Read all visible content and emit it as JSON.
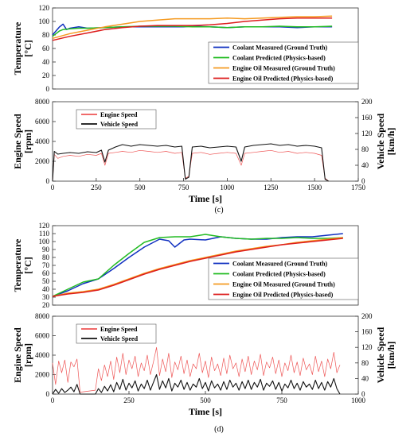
{
  "figure": {
    "panel_c_label": "(c)",
    "panel_d_label": "(d)"
  },
  "chart_data": [
    {
      "id": "c_temp",
      "type": "line",
      "ylabel": "Temperature\n[°C]",
      "ylim": [
        0,
        120
      ],
      "yticks": [
        0,
        20,
        40,
        60,
        80,
        100,
        120
      ],
      "xlim": [
        0,
        1750
      ],
      "show_xticklabels": false,
      "legend_position": "lower-right",
      "series": [
        {
          "name": "Coolant Measured (Ground Truth)",
          "color": "#1030c0",
          "x": [
            0,
            20,
            40,
            60,
            80,
            100,
            150,
            200,
            300,
            400,
            500,
            600,
            700,
            750,
            800,
            900,
            1000,
            1100,
            1200,
            1300,
            1400,
            1500,
            1600
          ],
          "y": [
            80,
            86,
            92,
            96,
            88,
            90,
            92,
            90,
            91,
            92,
            92,
            92,
            92,
            92,
            93,
            92,
            91,
            92,
            92,
            92,
            91,
            92,
            92
          ]
        },
        {
          "name": "Coolant Predicted (Physics-based)",
          "color": "#22bb22",
          "x": [
            0,
            20,
            40,
            60,
            100,
            150,
            200,
            300,
            400,
            500,
            600,
            700,
            800,
            900,
            1000,
            1100,
            1200,
            1300,
            1400,
            1500,
            1600
          ],
          "y": [
            78,
            82,
            86,
            88,
            89,
            90,
            90,
            91,
            92,
            93,
            93,
            93,
            92,
            92,
            91,
            92,
            92,
            93,
            92,
            92,
            93
          ]
        },
        {
          "name": "Engine Oil Measured (Ground Truth)",
          "color": "#f59a20",
          "x": [
            0,
            100,
            200,
            300,
            400,
            500,
            600,
            700,
            800,
            900,
            1000,
            1100,
            1200,
            1300,
            1400,
            1500,
            1600
          ],
          "y": [
            75,
            82,
            87,
            92,
            96,
            100,
            102,
            104,
            104,
            104,
            105,
            104,
            105,
            106,
            107,
            107,
            108
          ]
        },
        {
          "name": "Engine Oil Predicted (Physics-based)",
          "color": "#dd1c1c",
          "x": [
            0,
            100,
            200,
            300,
            400,
            500,
            600,
            700,
            800,
            900,
            1000,
            1100,
            1200,
            1300,
            1400,
            1500,
            1600
          ],
          "y": [
            72,
            78,
            83,
            88,
            91,
            93,
            94,
            94,
            94,
            95,
            97,
            100,
            102,
            104,
            105,
            105,
            105
          ]
        }
      ]
    },
    {
      "id": "c_speed",
      "type": "line",
      "ylabel": "Engine Speed\n[rpm]",
      "ylabel_right": "Vehicle Speed\n[km/h]",
      "xlabel": "Time [s]",
      "xlim": [
        0,
        1750
      ],
      "xticks": [
        0,
        250,
        500,
        750,
        1000,
        1250,
        1500,
        1750
      ],
      "ylim": [
        0,
        8000
      ],
      "yticks": [
        0,
        2000,
        4000,
        6000,
        8000
      ],
      "ylim_right": [
        0,
        200
      ],
      "yticks_right": [
        0,
        40,
        80,
        120,
        160,
        200
      ],
      "legend_position": "top-left",
      "series": [
        {
          "name": "Engine Speed",
          "color": "#ee5555",
          "axis": "left",
          "x": [
            0,
            10,
            30,
            60,
            100,
            150,
            200,
            250,
            280,
            300,
            320,
            360,
            400,
            450,
            500,
            550,
            600,
            650,
            700,
            740,
            760,
            780,
            800,
            850,
            900,
            950,
            1000,
            1050,
            1080,
            1100,
            1150,
            1200,
            1250,
            1300,
            1350,
            1400,
            1450,
            1500,
            1540,
            1560,
            1580
          ],
          "y": [
            0,
            2700,
            2300,
            2500,
            2600,
            2500,
            2700,
            2600,
            2800,
            1600,
            2800,
            2900,
            3000,
            2900,
            3100,
            3000,
            2900,
            3000,
            2800,
            2900,
            300,
            500,
            2800,
            2900,
            2700,
            2800,
            2900,
            2800,
            1600,
            2800,
            2900,
            3000,
            3100,
            2900,
            3000,
            2800,
            2900,
            2800,
            2600,
            300,
            0
          ]
        },
        {
          "name": "Vehicle Speed",
          "color": "#111111",
          "axis": "right",
          "x": [
            0,
            10,
            30,
            60,
            100,
            150,
            200,
            250,
            280,
            300,
            320,
            360,
            400,
            450,
            500,
            550,
            600,
            650,
            700,
            740,
            760,
            780,
            800,
            850,
            900,
            950,
            1000,
            1050,
            1080,
            1100,
            1150,
            1200,
            1250,
            1300,
            1350,
            1400,
            1450,
            1500,
            1540,
            1560,
            1580
          ],
          "y": [
            0,
            75,
            68,
            70,
            72,
            70,
            74,
            72,
            78,
            48,
            78,
            86,
            92,
            88,
            92,
            90,
            88,
            90,
            86,
            88,
            5,
            10,
            86,
            88,
            84,
            86,
            88,
            86,
            50,
            86,
            90,
            92,
            94,
            90,
            92,
            88,
            90,
            88,
            84,
            5,
            0
          ]
        }
      ]
    },
    {
      "id": "d_temp",
      "type": "line",
      "ylabel": "Temperature\n[°C]",
      "ylim": [
        20,
        120
      ],
      "yticks": [
        20,
        30,
        40,
        50,
        60,
        70,
        80,
        90,
        100,
        110,
        120
      ],
      "xlim": [
        0,
        1000
      ],
      "show_xticklabels": false,
      "legend_position": "lower-right",
      "series": [
        {
          "name": "Coolant Measured (Ground Truth)",
          "color": "#1030c0",
          "x": [
            0,
            50,
            100,
            150,
            200,
            250,
            300,
            350,
            380,
            400,
            430,
            450,
            500,
            550,
            600,
            650,
            700,
            750,
            800,
            850,
            900,
            950
          ],
          "y": [
            31,
            38,
            47,
            53,
            66,
            80,
            93,
            103,
            101,
            93,
            102,
            103,
            102,
            106,
            104,
            103,
            103,
            105,
            106,
            106,
            108,
            110
          ]
        },
        {
          "name": "Coolant Predicted (Physics-based)",
          "color": "#22bb22",
          "x": [
            0,
            50,
            100,
            150,
            200,
            250,
            300,
            350,
            400,
            450,
            500,
            550,
            600,
            650,
            700,
            750,
            800,
            850,
            900,
            950
          ],
          "y": [
            31,
            40,
            49,
            53,
            70,
            85,
            99,
            105,
            106,
            106,
            109,
            106,
            104,
            103,
            104,
            104,
            105,
            104,
            104,
            105
          ]
        },
        {
          "name": "Engine Oil Measured (Ground Truth)",
          "color": "#f59a20",
          "x": [
            0,
            50,
            100,
            150,
            200,
            250,
            300,
            350,
            400,
            450,
            500,
            550,
            600,
            650,
            700,
            750,
            800,
            850,
            900,
            950
          ],
          "y": [
            31,
            35,
            37,
            40,
            46,
            53,
            60,
            66,
            71,
            76,
            80,
            84,
            88,
            91,
            94,
            96,
            99,
            101,
            103,
            105
          ]
        },
        {
          "name": "Engine Oil Predicted (Physics-based)",
          "color": "#dd1c1c",
          "x": [
            0,
            50,
            100,
            150,
            200,
            250,
            300,
            350,
            400,
            450,
            500,
            550,
            600,
            650,
            700,
            750,
            800,
            850,
            900,
            950
          ],
          "y": [
            31,
            34,
            36,
            39,
            45,
            52,
            59,
            65,
            70,
            75,
            79,
            83,
            87,
            90,
            93,
            96,
            98,
            100,
            102,
            104
          ]
        }
      ]
    },
    {
      "id": "d_speed",
      "type": "line",
      "ylabel": "Engine Speed\n[rpm]",
      "ylabel_right": "Vehicle Speed\n[km/h]",
      "xlabel": "Time [s]",
      "xlim": [
        0,
        1000
      ],
      "xticks": [
        0,
        250,
        500,
        750,
        1000
      ],
      "ylim": [
        0,
        8000
      ],
      "yticks": [
        0,
        2000,
        4000,
        6000,
        8000
      ],
      "ylim_right": [
        0,
        200
      ],
      "yticks_right": [
        0,
        40,
        80,
        120,
        160,
        200
      ],
      "legend_position": "top-left",
      "series": [
        {
          "name": "Engine Speed",
          "color": "#ee5555",
          "axis": "left",
          "x": [
            0,
            10,
            20,
            30,
            40,
            50,
            60,
            70,
            80,
            90,
            140,
            150,
            160,
            170,
            180,
            190,
            200,
            210,
            220,
            230,
            240,
            250,
            260,
            270,
            280,
            290,
            300,
            310,
            320,
            330,
            340,
            350,
            360,
            370,
            380,
            390,
            400,
            410,
            420,
            430,
            440,
            450,
            460,
            470,
            480,
            490,
            500,
            510,
            520,
            530,
            540,
            550,
            560,
            570,
            580,
            590,
            600,
            610,
            620,
            630,
            640,
            650,
            660,
            670,
            680,
            690,
            700,
            710,
            720,
            730,
            740,
            750,
            760,
            770,
            780,
            790,
            800,
            810,
            820,
            830,
            840,
            850,
            860,
            870,
            880,
            890,
            900,
            910,
            920,
            930,
            940
          ],
          "y": [
            3200,
            1000,
            3400,
            2200,
            3500,
            1200,
            3300,
            2800,
            3600,
            200,
            400,
            2600,
            1400,
            3000,
            1800,
            3400,
            1500,
            3800,
            2200,
            4200,
            2000,
            3500,
            2600,
            3900,
            1800,
            3200,
            2400,
            4000,
            2000,
            3300,
            4800,
            1900,
            3600,
            2300,
            4200,
            1700,
            3300,
            2500,
            3900,
            2100,
            3500,
            1800,
            3100,
            2600,
            4200,
            2200,
            3400,
            1700,
            3800,
            2400,
            3100,
            1900,
            3700,
            2100,
            4000,
            2600,
            3200,
            1800,
            3600,
            2300,
            3900,
            2000,
            3400,
            2500,
            4100,
            1900,
            3300,
            2700,
            3800,
            2100,
            3500,
            1800,
            3200,
            2400,
            4000,
            2200,
            3300,
            1900,
            3700,
            2500,
            3100,
            2000,
            3900,
            2300,
            3400,
            1800,
            3600,
            2600,
            4300,
            2200,
            3000
          ]
        },
        {
          "name": "Vehicle Speed",
          "color": "#111111",
          "axis": "right",
          "x": [
            0,
            10,
            20,
            30,
            40,
            50,
            60,
            70,
            80,
            90,
            140,
            150,
            160,
            170,
            180,
            190,
            200,
            210,
            220,
            230,
            240,
            250,
            260,
            270,
            280,
            290,
            300,
            310,
            320,
            330,
            340,
            350,
            360,
            370,
            380,
            390,
            400,
            410,
            420,
            430,
            440,
            450,
            460,
            470,
            480,
            490,
            500,
            510,
            520,
            530,
            540,
            550,
            560,
            570,
            580,
            590,
            600,
            610,
            620,
            630,
            640,
            650,
            660,
            670,
            680,
            690,
            700,
            710,
            720,
            730,
            740,
            750,
            760,
            770,
            780,
            790,
            800,
            810,
            820,
            830,
            840,
            850,
            860,
            870,
            880,
            890,
            900,
            910,
            920,
            930,
            940
          ],
          "y": [
            0,
            12,
            2,
            14,
            4,
            10,
            18,
            6,
            25,
            0,
            0,
            14,
            4,
            20,
            8,
            24,
            6,
            30,
            12,
            38,
            10,
            28,
            16,
            34,
            8,
            26,
            14,
            36,
            10,
            30,
            50,
            12,
            34,
            16,
            40,
            8,
            28,
            18,
            36,
            12,
            30,
            10,
            26,
            18,
            40,
            14,
            30,
            8,
            34,
            16,
            26,
            10,
            32,
            12,
            36,
            18,
            28,
            10,
            32,
            14,
            36,
            12,
            30,
            18,
            38,
            10,
            28,
            20,
            34,
            12,
            30,
            8,
            26,
            16,
            36,
            14,
            28,
            10,
            32,
            18,
            26,
            12,
            36,
            14,
            30,
            10,
            32,
            18,
            40,
            14,
            0
          ]
        }
      ]
    }
  ]
}
